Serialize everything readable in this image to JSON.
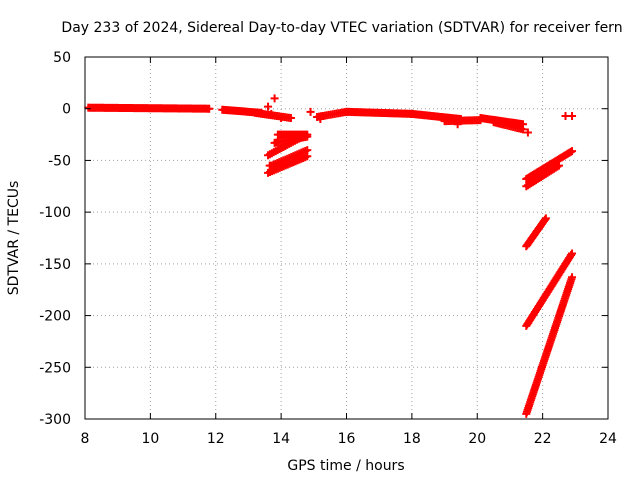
{
  "chart_data": {
    "type": "scatter",
    "title": "Day 233 of 2024, Sidereal Day-to-day VTEC variation (SDTVAR) for receiver fern",
    "xlabel": "GPS time / hours",
    "ylabel": "SDTVAR / TECUs",
    "xlim": [
      8,
      24
    ],
    "ylim": [
      -300,
      50
    ],
    "xticks": [
      8,
      10,
      12,
      14,
      16,
      18,
      20,
      22,
      24
    ],
    "yticks": [
      50,
      0,
      -50,
      -100,
      -150,
      -200,
      -250,
      -300
    ],
    "grid": true,
    "marker": "plus",
    "color": "#ff0000",
    "segments": [
      {
        "x0": 8.1,
        "y0": 1,
        "x1": 11.8,
        "y1": 0,
        "step": 0.05
      },
      {
        "x0": 12.2,
        "y0": -1,
        "x1": 13.4,
        "y1": -4,
        "step": 0.05
      },
      {
        "x0": 13.2,
        "y0": -4,
        "x1": 14.3,
        "y1": -9,
        "step": 0.06
      },
      {
        "x0": 13.9,
        "y0": -25,
        "x1": 14.8,
        "y1": -25,
        "step": 0.05
      },
      {
        "x0": 13.8,
        "y0": -33,
        "x1": 14.8,
        "y1": -27,
        "step": 0.06
      },
      {
        "x0": 13.6,
        "y0": -45,
        "x1": 14.6,
        "y1": -28,
        "step": 0.06
      },
      {
        "x0": 13.7,
        "y0": -55,
        "x1": 14.8,
        "y1": -40,
        "step": 0.06
      },
      {
        "x0": 13.6,
        "y0": -62,
        "x1": 14.8,
        "y1": -46,
        "step": 0.06
      },
      {
        "x0": 15.1,
        "y0": -8,
        "x1": 16.0,
        "y1": -3,
        "step": 0.06
      },
      {
        "x0": 16.0,
        "y0": -3,
        "x1": 18.0,
        "y1": -5,
        "step": 0.05
      },
      {
        "x0": 18.0,
        "y0": -5,
        "x1": 19.5,
        "y1": -10,
        "step": 0.05
      },
      {
        "x0": 19.0,
        "y0": -12,
        "x1": 20.1,
        "y1": -11,
        "step": 0.06
      },
      {
        "x0": 20.1,
        "y0": -9,
        "x1": 21.4,
        "y1": -15,
        "step": 0.05
      },
      {
        "x0": 20.5,
        "y0": -13,
        "x1": 21.4,
        "y1": -20,
        "step": 0.06
      },
      {
        "x0": 21.5,
        "y0": -68,
        "x1": 22.9,
        "y1": -41,
        "step": 0.04
      },
      {
        "x0": 21.5,
        "y0": -75,
        "x1": 22.5,
        "y1": -55,
        "step": 0.05
      },
      {
        "x0": 21.5,
        "y0": -133,
        "x1": 22.1,
        "y1": -106,
        "step": 0.03
      },
      {
        "x0": 21.5,
        "y0": -210,
        "x1": 22.9,
        "y1": -140,
        "step": 0.03
      },
      {
        "x0": 21.5,
        "y0": -295,
        "x1": 22.9,
        "y1": -163,
        "step": 0.02
      }
    ],
    "points": [
      {
        "x": 13.7,
        "y": -5
      },
      {
        "x": 13.8,
        "y": 10
      },
      {
        "x": 13.6,
        "y": 2
      },
      {
        "x": 14.0,
        "y": -9
      },
      {
        "x": 13.65,
        "y": -55
      },
      {
        "x": 14.9,
        "y": -3
      },
      {
        "x": 15.2,
        "y": -10
      },
      {
        "x": 19.4,
        "y": -15
      },
      {
        "x": 21.55,
        "y": -23
      },
      {
        "x": 22.7,
        "y": -7
      },
      {
        "x": 22.9,
        "y": -7
      }
    ]
  }
}
